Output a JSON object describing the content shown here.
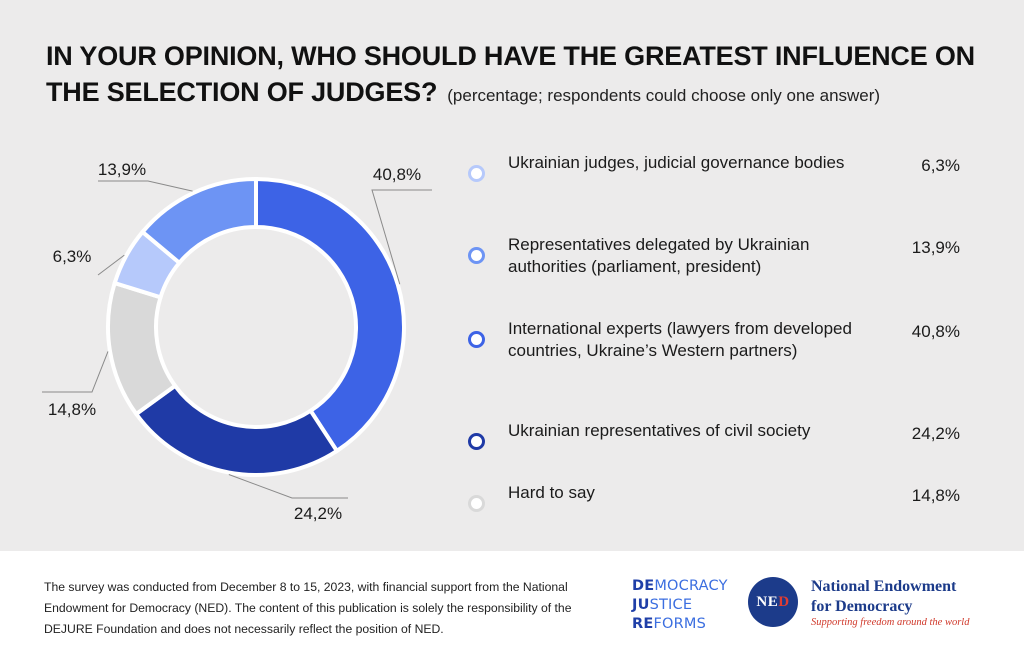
{
  "title": {
    "main": "IN YOUR OPINION, WHO SHOULD HAVE THE GREATEST INFLUENCE ON THE SELECTION OF JUDGES?",
    "subtitle": "(percentage; respondents could choose only one answer)"
  },
  "chart_data": {
    "type": "pie",
    "variant": "donut",
    "legend_position": "right",
    "series": [
      {
        "name": "Ukrainian judges, judicial governance bodies",
        "value": 6.3,
        "label": "6,3%",
        "color": "#b6c9fb"
      },
      {
        "name": "Representatives delegated by Ukrainian authorities (parliament, president)",
        "value": 13.9,
        "label": "13,9%",
        "color": "#6d94f4"
      },
      {
        "name": "International experts (lawyers from developed countries, Ukraine’s Western partners)",
        "value": 40.8,
        "label": "40,8%",
        "color": "#3d63e6"
      },
      {
        "name": "Ukrainian representatives of civil society",
        "value": 24.2,
        "label": "24,2%",
        "color": "#1f3aa6"
      },
      {
        "name": "Hard to say",
        "value": 14.8,
        "label": "14,8%",
        "color": "#d9d9d9"
      }
    ]
  },
  "footer": {
    "text": "The survey was conducted from December 8 to 15, 2023, with financial support from the National Endowment for Democracy (NED). The content of this publication is solely the responsibility of the DEJURE Foundation and does not necessarily reflect the position of NED.",
    "djr_logo": {
      "line1_bold": "DE",
      "line1_rest": "MOCRACY",
      "line2_bold": "JU",
      "line2_rest": "STICE",
      "line3_bold": "RE",
      "line3_rest": "FORMS"
    },
    "ned_logo": {
      "letters_1": "NE",
      "letters_2": "D",
      "name_line1": "National Endowment",
      "name_line2": "for Democracy",
      "tagline": "Supporting freedom around the world"
    }
  }
}
